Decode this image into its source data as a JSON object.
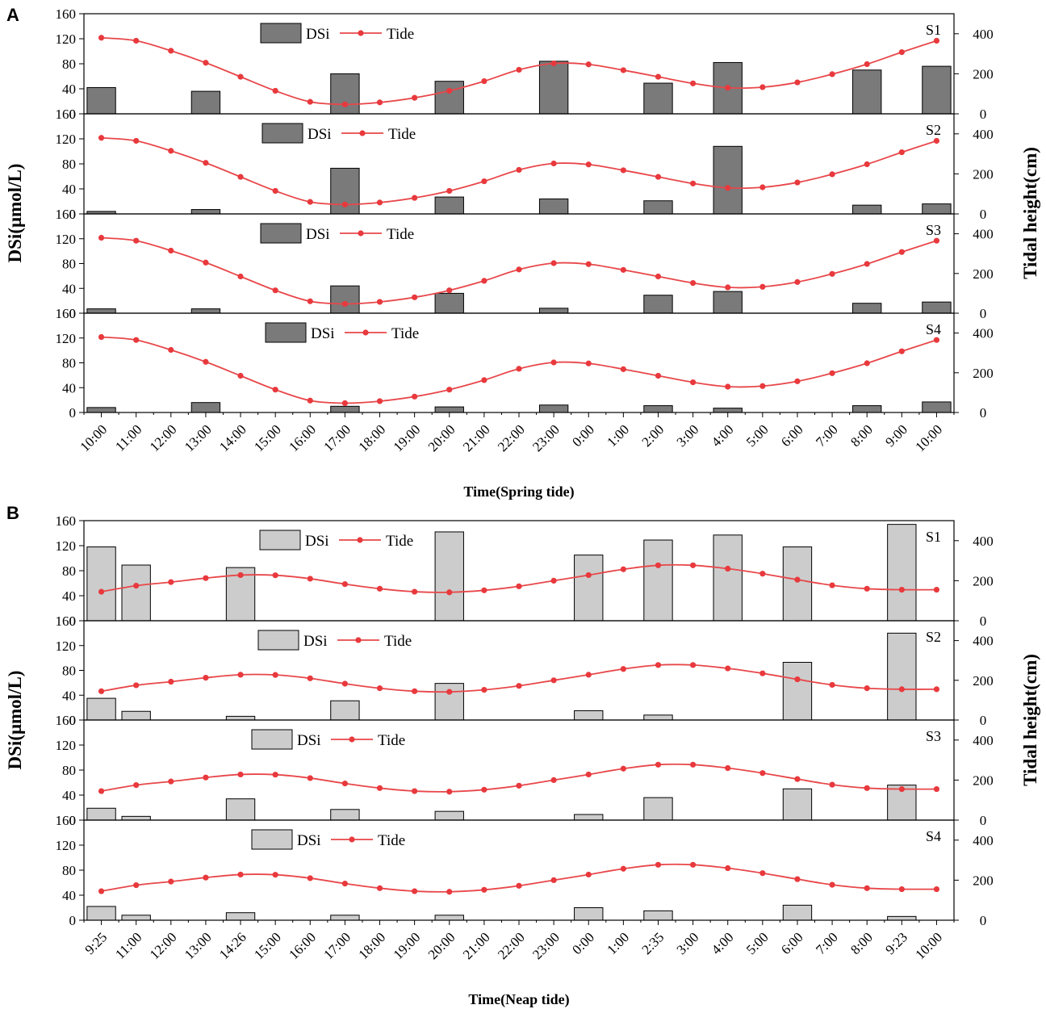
{
  "chart_data": [
    {
      "panel": "A",
      "type": "bar+line",
      "xlabel": "Time(Spring tide)",
      "ylabel_left": "DSi(μmol/L)",
      "ylabel_right": "Tidal height(cm)",
      "categories": [
        "10:00",
        "11:00",
        "12:00",
        "13:00",
        "14:00",
        "15:00",
        "16:00",
        "17:00",
        "18:00",
        "19:00",
        "20:00",
        "21:00",
        "22:00",
        "23:00",
        "0:00",
        "1:00",
        "2:00",
        "3:00",
        "4:00",
        "5:00",
        "6:00",
        "7:00",
        "8:00",
        "9:00",
        "10:00"
      ],
      "left_ticks": [
        "0",
        "40",
        "80",
        "120",
        "160"
      ],
      "right_ticks": [
        "0",
        "200",
        "400"
      ],
      "ylim_left": [
        0,
        160
      ],
      "ylim_right": [
        0,
        500
      ],
      "legend": {
        "bar": "DSi",
        "line": "Tide"
      },
      "tide": [
        380,
        365,
        315,
        255,
        185,
        115,
        60,
        47,
        57,
        80,
        115,
        163,
        220,
        252,
        247,
        218,
        185,
        152,
        130,
        133,
        157,
        198,
        248,
        308,
        365
      ],
      "stations": [
        {
          "name": "S1",
          "dsi": [
            42,
            null,
            null,
            36,
            null,
            null,
            null,
            64,
            null,
            null,
            52,
            null,
            null,
            84,
            null,
            null,
            49,
            null,
            82,
            null,
            null,
            null,
            70,
            null,
            76
          ]
        },
        {
          "name": "S2",
          "dsi": [
            4,
            null,
            null,
            7,
            null,
            null,
            null,
            73,
            null,
            null,
            27,
            null,
            null,
            24,
            null,
            null,
            21,
            null,
            108,
            null,
            null,
            null,
            14,
            null,
            16
          ]
        },
        {
          "name": "S3",
          "dsi": [
            7,
            null,
            null,
            7,
            null,
            null,
            null,
            44,
            null,
            null,
            32,
            null,
            null,
            8,
            null,
            null,
            29,
            null,
            35,
            null,
            null,
            null,
            16,
            null,
            18
          ]
        },
        {
          "name": "S4",
          "dsi": [
            8,
            null,
            null,
            16,
            null,
            null,
            null,
            10,
            null,
            null,
            9,
            null,
            null,
            12,
            null,
            null,
            11,
            null,
            7,
            null,
            null,
            null,
            11,
            null,
            17
          ]
        }
      ]
    },
    {
      "panel": "B",
      "type": "bar+line",
      "xlabel": "Time(Neap tide)",
      "ylabel_left": "DSi(μmol/L)",
      "ylabel_right": "Tidal height(cm)",
      "categories": [
        "9:25",
        "11:00",
        "12:00",
        "13:00",
        "14:26",
        "15:00",
        "16:00",
        "17:00",
        "18:00",
        "19:00",
        "20:00",
        "21:00",
        "22:00",
        "23:00",
        "0:00",
        "1:00",
        "2:35",
        "3:00",
        "4:00",
        "5:00",
        "6:00",
        "7:00",
        "8:00",
        "9:23",
        "10:00"
      ],
      "left_ticks": [
        "0",
        "40",
        "80",
        "120",
        "160"
      ],
      "right_ticks": [
        "0",
        "200",
        "400"
      ],
      "ylim_left": [
        0,
        160
      ],
      "ylim_right": [
        0,
        500
      ],
      "legend": {
        "bar": "DSi",
        "line": "Tide"
      },
      "tide": [
        145,
        175,
        193,
        213,
        228,
        227,
        210,
        183,
        160,
        145,
        142,
        152,
        172,
        200,
        228,
        257,
        277,
        277,
        260,
        235,
        205,
        177,
        160,
        155,
        155
      ],
      "stations": [
        {
          "name": "S1",
          "dsi": [
            118,
            89,
            null,
            null,
            85,
            null,
            null,
            null,
            null,
            null,
            142,
            null,
            null,
            null,
            105,
            null,
            129,
            null,
            137,
            null,
            118,
            null,
            null,
            154,
            null
          ]
        },
        {
          "name": "S2",
          "dsi": [
            35,
            14,
            null,
            null,
            6,
            null,
            null,
            31,
            null,
            null,
            59,
            null,
            null,
            null,
            15,
            null,
            8,
            null,
            null,
            null,
            93,
            null,
            null,
            140,
            null
          ]
        },
        {
          "name": "S3",
          "dsi": [
            19,
            6,
            null,
            null,
            34,
            null,
            null,
            17,
            null,
            null,
            14,
            null,
            null,
            null,
            9,
            null,
            36,
            null,
            null,
            null,
            50,
            null,
            null,
            56,
            null
          ]
        },
        {
          "name": "S4",
          "dsi": [
            22,
            8,
            null,
            null,
            12,
            null,
            null,
            8,
            null,
            null,
            8,
            null,
            null,
            null,
            20,
            null,
            15,
            null,
            null,
            null,
            24,
            null,
            null,
            6,
            null
          ]
        }
      ]
    }
  ]
}
